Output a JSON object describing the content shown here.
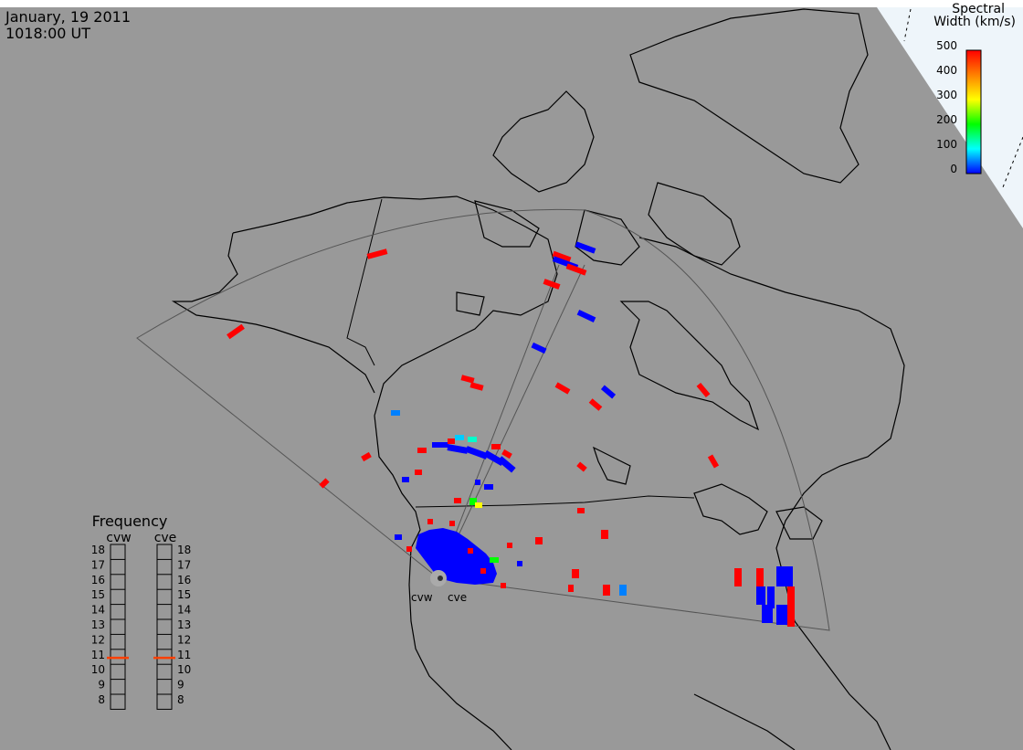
{
  "header": {
    "date": "January, 19 2011",
    "time": "1018:00 UT"
  },
  "colorbar": {
    "title_line1": "Spectral",
    "title_line2": "Width (km/s)",
    "ticks": [
      "500",
      "400",
      "300",
      "200",
      "100",
      "0"
    ],
    "max": 500,
    "min": 0,
    "colors": [
      "#ff0000",
      "#ff8000",
      "#ffff00",
      "#00ff00",
      "#00ffff",
      "#0000ff"
    ]
  },
  "frequency_panel": {
    "title": "Frequency",
    "left_radar": "cvw",
    "right_radar": "cve",
    "scale": [
      "18",
      "17",
      "16",
      "15",
      "14",
      "13",
      "12",
      "11",
      "10",
      "9",
      "8"
    ],
    "cvw_freq_mhz": 10.8,
    "cve_freq_mhz": 10.8,
    "marker_color": "#ff4000"
  },
  "radars": [
    {
      "name": "cvw"
    },
    {
      "name": "cve"
    }
  ],
  "colors": {
    "ocean": "#999999",
    "land_outline": "#000000",
    "fov": "#555555"
  }
}
